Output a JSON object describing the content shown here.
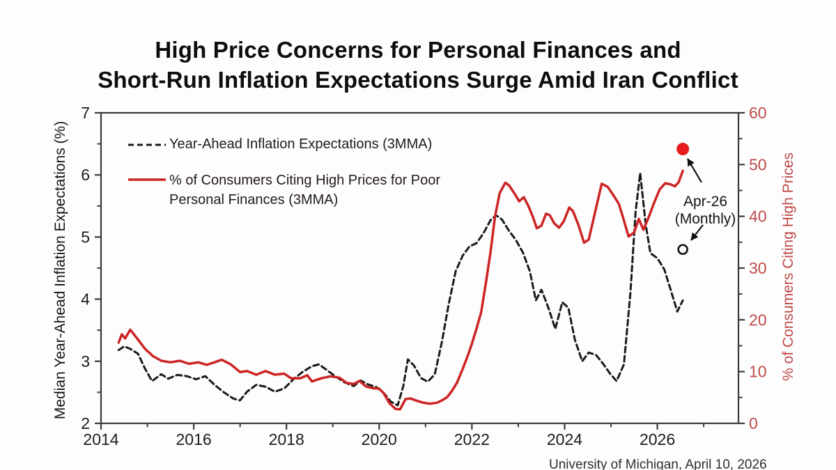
{
  "title": {
    "line1": "High Price Concerns for Personal Finances and",
    "line2": "Short-Run Inflation Expectations Surge Amid Iran Conflict"
  },
  "left_axis_label": "Median Year-Ahead Inflation Expectations (%)",
  "right_axis_label": "% of Consumers Citing High Prices",
  "legend": {
    "series1": "Year-Ahead Inflation Expectations (3MMA)",
    "series2_line1": "% of Consumers Citing High Prices for Poor",
    "series2_line2": "Personal Finances (3MMA)"
  },
  "annotation": {
    "line1": "Apr-26",
    "line2": "(Monthly)"
  },
  "source": "University of Michigan, April 10, 2026",
  "colors": {
    "black_line": "#1a1a1a",
    "red_line": "#cc2424",
    "red_dot": "#e61c1c",
    "right_axis_text": "#bd4a4a",
    "frame": "#3a3a3a"
  },
  "chart_data": {
    "type": "line",
    "title": "High Price Concerns for Personal Finances and Short-Run Inflation Expectations Surge Amid Iran Conflict",
    "x_axis": {
      "range": [
        2014,
        2027.75
      ],
      "major_ticks": [
        2014,
        2016,
        2018,
        2020,
        2022,
        2024,
        2026
      ],
      "minor_ticks": [
        2015,
        2017,
        2019,
        2021,
        2023,
        2025,
        2027
      ]
    },
    "left_axis": {
      "label": "Median Year-Ahead Inflation Expectations (%)",
      "range": [
        2,
        7
      ],
      "major_ticks": [
        2,
        3,
        4,
        5,
        6,
        7
      ],
      "minor_ticks": [
        2.5,
        3.5,
        4.5,
        5.5,
        6.5
      ]
    },
    "right_axis": {
      "label": "% of Consumers Citing High Prices",
      "range": [
        0,
        60
      ],
      "major_ticks": [
        0,
        10,
        20,
        30,
        40,
        50,
        60
      ],
      "minor_ticks": [
        5,
        15,
        25,
        35,
        45,
        55
      ]
    },
    "grid": false,
    "legend_position": "upper-left-inside",
    "series": [
      {
        "name": "Year-Ahead Inflation Expectations (3MMA)",
        "axis": "left",
        "style": "dashed",
        "color": "#1a1a1a",
        "width": 3,
        "points": [
          [
            2014.38,
            3.18
          ],
          [
            2014.5,
            3.24
          ],
          [
            2014.63,
            3.2
          ],
          [
            2014.8,
            3.12
          ],
          [
            2014.95,
            2.88
          ],
          [
            2015.1,
            2.68
          ],
          [
            2015.3,
            2.79
          ],
          [
            2015.45,
            2.72
          ],
          [
            2015.65,
            2.78
          ],
          [
            2015.85,
            2.76
          ],
          [
            2016.05,
            2.71
          ],
          [
            2016.25,
            2.76
          ],
          [
            2016.45,
            2.62
          ],
          [
            2016.65,
            2.5
          ],
          [
            2016.85,
            2.4
          ],
          [
            2017.0,
            2.37
          ],
          [
            2017.15,
            2.51
          ],
          [
            2017.35,
            2.62
          ],
          [
            2017.55,
            2.59
          ],
          [
            2017.75,
            2.51
          ],
          [
            2017.95,
            2.56
          ],
          [
            2018.15,
            2.71
          ],
          [
            2018.35,
            2.83
          ],
          [
            2018.55,
            2.92
          ],
          [
            2018.7,
            2.95
          ],
          [
            2018.85,
            2.87
          ],
          [
            2019.05,
            2.76
          ],
          [
            2019.25,
            2.66
          ],
          [
            2019.45,
            2.6
          ],
          [
            2019.6,
            2.69
          ],
          [
            2019.75,
            2.63
          ],
          [
            2019.95,
            2.58
          ],
          [
            2020.1,
            2.49
          ],
          [
            2020.25,
            2.35
          ],
          [
            2020.4,
            2.29
          ],
          [
            2020.52,
            2.6
          ],
          [
            2020.62,
            3.03
          ],
          [
            2020.75,
            2.93
          ],
          [
            2020.9,
            2.73
          ],
          [
            2021.05,
            2.67
          ],
          [
            2021.2,
            2.79
          ],
          [
            2021.35,
            3.3
          ],
          [
            2021.5,
            3.92
          ],
          [
            2021.65,
            4.45
          ],
          [
            2021.8,
            4.7
          ],
          [
            2021.95,
            4.85
          ],
          [
            2022.1,
            4.9
          ],
          [
            2022.25,
            5.06
          ],
          [
            2022.4,
            5.27
          ],
          [
            2022.52,
            5.35
          ],
          [
            2022.65,
            5.28
          ],
          [
            2022.8,
            5.1
          ],
          [
            2022.95,
            4.95
          ],
          [
            2023.1,
            4.75
          ],
          [
            2023.25,
            4.45
          ],
          [
            2023.38,
            3.98
          ],
          [
            2023.5,
            4.15
          ],
          [
            2023.65,
            3.86
          ],
          [
            2023.8,
            3.52
          ],
          [
            2023.95,
            3.95
          ],
          [
            2024.08,
            3.86
          ],
          [
            2024.22,
            3.35
          ],
          [
            2024.38,
            3.0
          ],
          [
            2024.52,
            3.14
          ],
          [
            2024.68,
            3.1
          ],
          [
            2024.83,
            2.96
          ],
          [
            2024.98,
            2.8
          ],
          [
            2025.12,
            2.68
          ],
          [
            2025.28,
            2.95
          ],
          [
            2025.42,
            4.1
          ],
          [
            2025.53,
            5.4
          ],
          [
            2025.63,
            6.03
          ],
          [
            2025.75,
            5.2
          ],
          [
            2025.85,
            4.74
          ],
          [
            2026.0,
            4.66
          ],
          [
            2026.15,
            4.48
          ],
          [
            2026.3,
            4.12
          ],
          [
            2026.43,
            3.8
          ],
          [
            2026.55,
            3.98
          ]
        ]
      },
      {
        "name": "% of Consumers Citing High Prices for Poor Personal Finances (3MMA)",
        "axis": "right",
        "style": "solid",
        "color": "#cc2424",
        "width": 3.5,
        "points": [
          [
            2014.38,
            15.6
          ],
          [
            2014.45,
            17.2
          ],
          [
            2014.52,
            16.4
          ],
          [
            2014.63,
            18.1
          ],
          [
            2014.78,
            16.4
          ],
          [
            2014.95,
            14.4
          ],
          [
            2015.12,
            13.0
          ],
          [
            2015.3,
            12.1
          ],
          [
            2015.5,
            11.8
          ],
          [
            2015.7,
            12.1
          ],
          [
            2015.9,
            11.5
          ],
          [
            2016.1,
            11.8
          ],
          [
            2016.28,
            11.3
          ],
          [
            2016.45,
            11.8
          ],
          [
            2016.6,
            12.3
          ],
          [
            2016.8,
            11.4
          ],
          [
            2017.0,
            9.9
          ],
          [
            2017.15,
            10.1
          ],
          [
            2017.35,
            9.4
          ],
          [
            2017.55,
            10.1
          ],
          [
            2017.75,
            9.4
          ],
          [
            2017.95,
            9.6
          ],
          [
            2018.1,
            8.7
          ],
          [
            2018.3,
            8.7
          ],
          [
            2018.45,
            9.3
          ],
          [
            2018.55,
            8.1
          ],
          [
            2018.75,
            8.7
          ],
          [
            2018.95,
            9.1
          ],
          [
            2019.15,
            8.8
          ],
          [
            2019.3,
            7.8
          ],
          [
            2019.45,
            7.6
          ],
          [
            2019.57,
            8.2
          ],
          [
            2019.72,
            7.1
          ],
          [
            2019.87,
            6.8
          ],
          [
            2020.0,
            6.7
          ],
          [
            2020.1,
            5.8
          ],
          [
            2020.22,
            3.9
          ],
          [
            2020.35,
            2.8
          ],
          [
            2020.45,
            2.7
          ],
          [
            2020.57,
            4.7
          ],
          [
            2020.68,
            4.8
          ],
          [
            2020.8,
            4.4
          ],
          [
            2020.95,
            4.0
          ],
          [
            2021.1,
            3.8
          ],
          [
            2021.25,
            4.0
          ],
          [
            2021.37,
            4.5
          ],
          [
            2021.47,
            5.1
          ],
          [
            2021.58,
            6.4
          ],
          [
            2021.68,
            7.9
          ],
          [
            2021.8,
            10.5
          ],
          [
            2021.9,
            12.8
          ],
          [
            2022.0,
            15.4
          ],
          [
            2022.1,
            18.3
          ],
          [
            2022.2,
            21.5
          ],
          [
            2022.3,
            27.0
          ],
          [
            2022.4,
            33.0
          ],
          [
            2022.5,
            40.0
          ],
          [
            2022.6,
            44.5
          ],
          [
            2022.72,
            46.5
          ],
          [
            2022.8,
            46.0
          ],
          [
            2022.92,
            44.4
          ],
          [
            2023.02,
            42.9
          ],
          [
            2023.12,
            43.7
          ],
          [
            2023.22,
            42.0
          ],
          [
            2023.32,
            39.8
          ],
          [
            2023.4,
            37.7
          ],
          [
            2023.5,
            38.2
          ],
          [
            2023.6,
            40.5
          ],
          [
            2023.68,
            40.2
          ],
          [
            2023.78,
            38.6
          ],
          [
            2023.88,
            37.8
          ],
          [
            2023.98,
            39.0
          ],
          [
            2024.1,
            41.7
          ],
          [
            2024.18,
            41.0
          ],
          [
            2024.3,
            38.3
          ],
          [
            2024.42,
            34.9
          ],
          [
            2024.52,
            35.5
          ],
          [
            2024.65,
            40.5
          ],
          [
            2024.8,
            46.3
          ],
          [
            2024.93,
            45.7
          ],
          [
            2025.05,
            44.1
          ],
          [
            2025.17,
            42.4
          ],
          [
            2025.28,
            39.2
          ],
          [
            2025.38,
            36.1
          ],
          [
            2025.5,
            36.9
          ],
          [
            2025.6,
            39.5
          ],
          [
            2025.7,
            37.4
          ],
          [
            2025.82,
            40.0
          ],
          [
            2025.93,
            42.6
          ],
          [
            2026.05,
            45.2
          ],
          [
            2026.17,
            46.4
          ],
          [
            2026.28,
            46.2
          ],
          [
            2026.38,
            45.8
          ],
          [
            2026.46,
            46.6
          ],
          [
            2026.55,
            48.8
          ]
        ]
      }
    ],
    "markers": [
      {
        "label": "Apr-26 (Monthly) — % citing high prices",
        "axis": "right",
        "x": 2026.55,
        "value": 53,
        "style": "filled",
        "color": "#e61c1c",
        "radius": 9
      },
      {
        "label": "Apr-26 (Monthly) — inflation expectations",
        "axis": "left",
        "x": 2026.55,
        "value": 4.8,
        "style": "open",
        "color": "#111111",
        "radius": 6.5
      }
    ],
    "annotation_text": "Apr-26 (Monthly)",
    "source": "University of Michigan, April 10, 2026"
  }
}
